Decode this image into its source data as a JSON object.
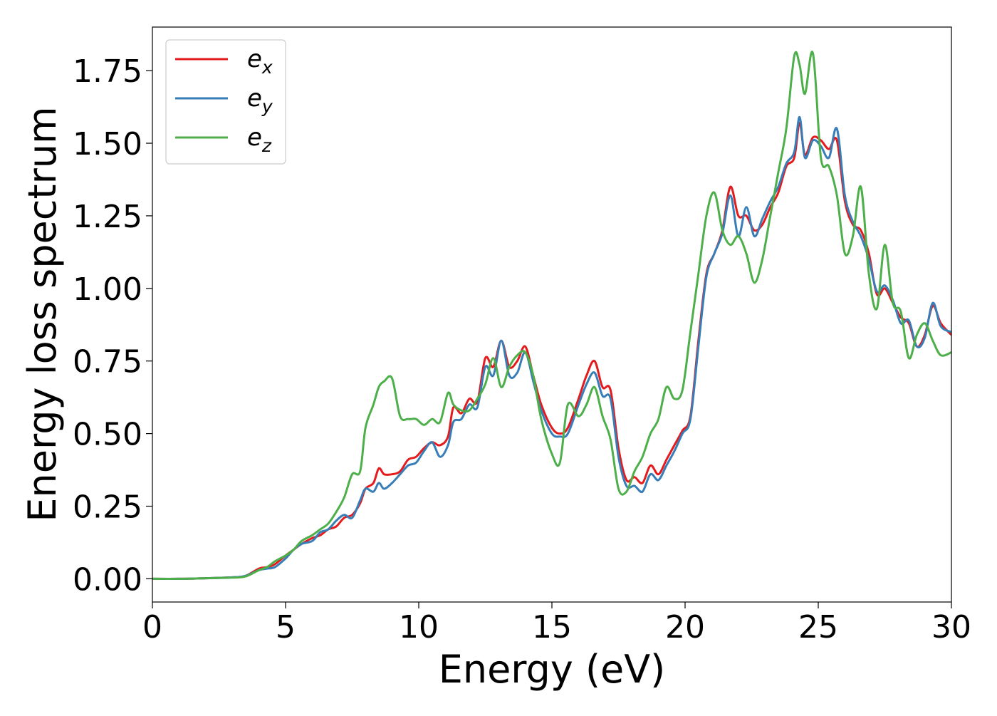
{
  "chart_data": {
    "type": "line",
    "xlabel": "Energy (eV)",
    "ylabel": "Energy loss spectrum",
    "xlim": [
      0,
      30
    ],
    "ylim": [
      -0.08,
      1.9
    ],
    "x_ticks": [
      0,
      5,
      10,
      15,
      20,
      25,
      30
    ],
    "x_tick_labels": [
      "0",
      "5",
      "10",
      "15",
      "20",
      "25",
      "30"
    ],
    "y_ticks": [
      0,
      0.25,
      0.5,
      0.75,
      1.0,
      1.25,
      1.5,
      1.75
    ],
    "y_tick_labels": [
      "0.00",
      "0.25",
      "0.50",
      "0.75",
      "1.00",
      "1.25",
      "1.50",
      "1.75"
    ],
    "grid": false,
    "legend_position": "top-left",
    "series": [
      {
        "name": "e_x",
        "legend_base": "e",
        "legend_sub": "x",
        "color": "#e41a1c",
        "points": [
          [
            0,
            0
          ],
          [
            1,
            0
          ],
          [
            2,
            0.002
          ],
          [
            3,
            0.005
          ],
          [
            3.5,
            0.01
          ],
          [
            4,
            0.035
          ],
          [
            4.3,
            0.04
          ],
          [
            4.6,
            0.05
          ],
          [
            5,
            0.08
          ],
          [
            5.3,
            0.1
          ],
          [
            5.6,
            0.12
          ],
          [
            6,
            0.14
          ],
          [
            6.3,
            0.15
          ],
          [
            6.6,
            0.17
          ],
          [
            6.9,
            0.18
          ],
          [
            7.2,
            0.21
          ],
          [
            7.5,
            0.22
          ],
          [
            7.8,
            0.26
          ],
          [
            8,
            0.31
          ],
          [
            8.3,
            0.33
          ],
          [
            8.5,
            0.38
          ],
          [
            8.7,
            0.36
          ],
          [
            9,
            0.36
          ],
          [
            9.3,
            0.37
          ],
          [
            9.6,
            0.41
          ],
          [
            9.9,
            0.42
          ],
          [
            10.2,
            0.45
          ],
          [
            10.5,
            0.47
          ],
          [
            10.8,
            0.46
          ],
          [
            11.1,
            0.49
          ],
          [
            11.3,
            0.59
          ],
          [
            11.6,
            0.57
          ],
          [
            11.9,
            0.62
          ],
          [
            12.2,
            0.61
          ],
          [
            12.5,
            0.76
          ],
          [
            12.8,
            0.73
          ],
          [
            13.1,
            0.82
          ],
          [
            13.4,
            0.73
          ],
          [
            13.7,
            0.75
          ],
          [
            14,
            0.8
          ],
          [
            14.3,
            0.7
          ],
          [
            14.6,
            0.6
          ],
          [
            15,
            0.52
          ],
          [
            15.3,
            0.5
          ],
          [
            15.6,
            0.52
          ],
          [
            16,
            0.62
          ],
          [
            16.3,
            0.7
          ],
          [
            16.6,
            0.75
          ],
          [
            16.9,
            0.66
          ],
          [
            17.2,
            0.65
          ],
          [
            17.5,
            0.45
          ],
          [
            17.8,
            0.34
          ],
          [
            18.1,
            0.35
          ],
          [
            18.4,
            0.33
          ],
          [
            18.7,
            0.39
          ],
          [
            19,
            0.36
          ],
          [
            19.3,
            0.41
          ],
          [
            19.6,
            0.46
          ],
          [
            19.9,
            0.51
          ],
          [
            20.2,
            0.56
          ],
          [
            20.5,
            0.82
          ],
          [
            20.8,
            1.05
          ],
          [
            21.1,
            1.12
          ],
          [
            21.4,
            1.2
          ],
          [
            21.7,
            1.35
          ],
          [
            22,
            1.25
          ],
          [
            22.3,
            1.25
          ],
          [
            22.6,
            1.2
          ],
          [
            22.9,
            1.22
          ],
          [
            23.2,
            1.28
          ],
          [
            23.5,
            1.33
          ],
          [
            23.8,
            1.42
          ],
          [
            24.1,
            1.45
          ],
          [
            24.3,
            1.57
          ],
          [
            24.5,
            1.46
          ],
          [
            24.8,
            1.52
          ],
          [
            25.1,
            1.51
          ],
          [
            25.4,
            1.48
          ],
          [
            25.7,
            1.51
          ],
          [
            26,
            1.3
          ],
          [
            26.3,
            1.22
          ],
          [
            26.6,
            1.2
          ],
          [
            26.9,
            1.12
          ],
          [
            27.2,
            0.98
          ],
          [
            27.5,
            1.0
          ],
          [
            27.8,
            0.95
          ],
          [
            28.1,
            0.9
          ],
          [
            28.4,
            0.88
          ],
          [
            28.7,
            0.8
          ],
          [
            29,
            0.84
          ],
          [
            29.3,
            0.94
          ],
          [
            29.6,
            0.88
          ],
          [
            30,
            0.84
          ]
        ]
      },
      {
        "name": "e_y",
        "legend_base": "e",
        "legend_sub": "y",
        "color": "#377eb8",
        "points": [
          [
            0,
            0
          ],
          [
            1,
            0
          ],
          [
            2,
            0.002
          ],
          [
            3,
            0.005
          ],
          [
            3.5,
            0.01
          ],
          [
            4,
            0.03
          ],
          [
            4.3,
            0.035
          ],
          [
            4.6,
            0.04
          ],
          [
            5,
            0.07
          ],
          [
            5.3,
            0.1
          ],
          [
            5.6,
            0.12
          ],
          [
            6,
            0.13
          ],
          [
            6.3,
            0.16
          ],
          [
            6.6,
            0.17
          ],
          [
            6.9,
            0.2
          ],
          [
            7.2,
            0.22
          ],
          [
            7.5,
            0.21
          ],
          [
            7.8,
            0.27
          ],
          [
            8,
            0.31
          ],
          [
            8.3,
            0.3
          ],
          [
            8.5,
            0.33
          ],
          [
            8.7,
            0.31
          ],
          [
            9,
            0.33
          ],
          [
            9.3,
            0.36
          ],
          [
            9.6,
            0.39
          ],
          [
            9.9,
            0.4
          ],
          [
            10.2,
            0.44
          ],
          [
            10.5,
            0.47
          ],
          [
            10.8,
            0.42
          ],
          [
            11.1,
            0.46
          ],
          [
            11.3,
            0.54
          ],
          [
            11.6,
            0.55
          ],
          [
            11.9,
            0.6
          ],
          [
            12.2,
            0.59
          ],
          [
            12.5,
            0.73
          ],
          [
            12.8,
            0.7
          ],
          [
            13.1,
            0.82
          ],
          [
            13.4,
            0.7
          ],
          [
            13.7,
            0.71
          ],
          [
            14,
            0.78
          ],
          [
            14.3,
            0.68
          ],
          [
            14.6,
            0.58
          ],
          [
            15,
            0.5
          ],
          [
            15.3,
            0.49
          ],
          [
            15.6,
            0.5
          ],
          [
            16,
            0.6
          ],
          [
            16.3,
            0.67
          ],
          [
            16.6,
            0.71
          ],
          [
            16.9,
            0.63
          ],
          [
            17.2,
            0.62
          ],
          [
            17.5,
            0.42
          ],
          [
            17.8,
            0.32
          ],
          [
            18.1,
            0.32
          ],
          [
            18.4,
            0.3
          ],
          [
            18.7,
            0.36
          ],
          [
            19,
            0.34
          ],
          [
            19.3,
            0.39
          ],
          [
            19.6,
            0.44
          ],
          [
            19.9,
            0.5
          ],
          [
            20.2,
            0.55
          ],
          [
            20.5,
            0.8
          ],
          [
            20.8,
            1.04
          ],
          [
            21.1,
            1.12
          ],
          [
            21.4,
            1.19
          ],
          [
            21.7,
            1.32
          ],
          [
            22,
            1.18
          ],
          [
            22.3,
            1.28
          ],
          [
            22.6,
            1.18
          ],
          [
            22.9,
            1.24
          ],
          [
            23.2,
            1.3
          ],
          [
            23.5,
            1.35
          ],
          [
            23.8,
            1.43
          ],
          [
            24.1,
            1.47
          ],
          [
            24.3,
            1.59
          ],
          [
            24.5,
            1.45
          ],
          [
            24.8,
            1.51
          ],
          [
            25.1,
            1.49
          ],
          [
            25.4,
            1.45
          ],
          [
            25.7,
            1.55
          ],
          [
            26,
            1.32
          ],
          [
            26.3,
            1.23
          ],
          [
            26.6,
            1.18
          ],
          [
            26.9,
            1.1
          ],
          [
            27.2,
            0.99
          ],
          [
            27.5,
            1.01
          ],
          [
            27.8,
            0.96
          ],
          [
            28.1,
            0.88
          ],
          [
            28.4,
            0.89
          ],
          [
            28.7,
            0.8
          ],
          [
            29,
            0.83
          ],
          [
            29.3,
            0.95
          ],
          [
            29.6,
            0.87
          ],
          [
            30,
            0.85
          ]
        ]
      },
      {
        "name": "e_z",
        "legend_base": "e",
        "legend_sub": "z",
        "color": "#4daf4a",
        "points": [
          [
            0,
            0
          ],
          [
            1,
            0
          ],
          [
            2,
            0.002
          ],
          [
            3,
            0.004
          ],
          [
            3.5,
            0.008
          ],
          [
            4,
            0.03
          ],
          [
            4.3,
            0.04
          ],
          [
            4.6,
            0.06
          ],
          [
            5,
            0.08
          ],
          [
            5.3,
            0.1
          ],
          [
            5.6,
            0.13
          ],
          [
            6,
            0.15
          ],
          [
            6.3,
            0.17
          ],
          [
            6.6,
            0.19
          ],
          [
            6.9,
            0.23
          ],
          [
            7.2,
            0.28
          ],
          [
            7.5,
            0.36
          ],
          [
            7.8,
            0.37
          ],
          [
            8,
            0.52
          ],
          [
            8.3,
            0.6
          ],
          [
            8.5,
            0.66
          ],
          [
            8.7,
            0.68
          ],
          [
            9,
            0.69
          ],
          [
            9.3,
            0.56
          ],
          [
            9.6,
            0.55
          ],
          [
            9.9,
            0.55
          ],
          [
            10.2,
            0.53
          ],
          [
            10.5,
            0.55
          ],
          [
            10.8,
            0.54
          ],
          [
            11.1,
            0.64
          ],
          [
            11.3,
            0.6
          ],
          [
            11.6,
            0.58
          ],
          [
            11.9,
            0.58
          ],
          [
            12.2,
            0.62
          ],
          [
            12.5,
            0.67
          ],
          [
            12.8,
            0.76
          ],
          [
            13.1,
            0.66
          ],
          [
            13.4,
            0.73
          ],
          [
            13.7,
            0.77
          ],
          [
            14,
            0.78
          ],
          [
            14.3,
            0.7
          ],
          [
            14.6,
            0.55
          ],
          [
            15,
            0.43
          ],
          [
            15.3,
            0.4
          ],
          [
            15.6,
            0.6
          ],
          [
            16,
            0.56
          ],
          [
            16.3,
            0.6
          ],
          [
            16.6,
            0.66
          ],
          [
            16.9,
            0.56
          ],
          [
            17.2,
            0.48
          ],
          [
            17.5,
            0.31
          ],
          [
            17.8,
            0.3
          ],
          [
            18.1,
            0.37
          ],
          [
            18.4,
            0.42
          ],
          [
            18.7,
            0.5
          ],
          [
            19,
            0.55
          ],
          [
            19.3,
            0.66
          ],
          [
            19.6,
            0.62
          ],
          [
            19.9,
            0.65
          ],
          [
            20.2,
            0.85
          ],
          [
            20.5,
            1.05
          ],
          [
            20.8,
            1.25
          ],
          [
            21.1,
            1.33
          ],
          [
            21.4,
            1.2
          ],
          [
            21.7,
            1.15
          ],
          [
            22,
            1.18
          ],
          [
            22.3,
            1.12
          ],
          [
            22.6,
            1.02
          ],
          [
            22.9,
            1.1
          ],
          [
            23.2,
            1.25
          ],
          [
            23.5,
            1.4
          ],
          [
            23.8,
            1.55
          ],
          [
            24.1,
            1.8
          ],
          [
            24.3,
            1.77
          ],
          [
            24.5,
            1.67
          ],
          [
            24.8,
            1.81
          ],
          [
            25.1,
            1.45
          ],
          [
            25.4,
            1.42
          ],
          [
            25.7,
            1.32
          ],
          [
            26,
            1.12
          ],
          [
            26.3,
            1.18
          ],
          [
            26.6,
            1.35
          ],
          [
            26.9,
            1.05
          ],
          [
            27.2,
            0.93
          ],
          [
            27.5,
            1.15
          ],
          [
            27.8,
            0.95
          ],
          [
            28.1,
            0.92
          ],
          [
            28.4,
            0.76
          ],
          [
            28.7,
            0.84
          ],
          [
            29,
            0.88
          ],
          [
            29.3,
            0.82
          ],
          [
            29.6,
            0.77
          ],
          [
            30,
            0.78
          ]
        ]
      }
    ]
  }
}
